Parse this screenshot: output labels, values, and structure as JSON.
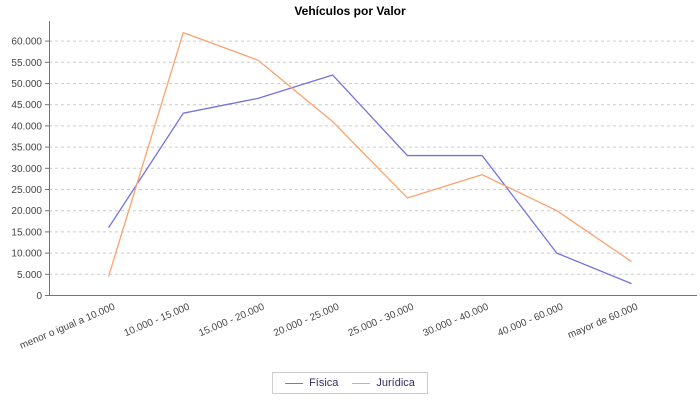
{
  "chart": {
    "title": "Vehículos por Valor"
  },
  "chart_data": {
    "type": "line",
    "title": "Vehículos por Valor",
    "categories": [
      "menor o igual a 10.000",
      "10.000 - 15.000",
      "15.000 - 20.000",
      "20.000 - 25.000",
      "25.000 - 30.000",
      "30.000 - 40.000",
      "40.000 - 60.000",
      "mayor de 60.000"
    ],
    "series": [
      {
        "name": "Física",
        "color": "#7373DE",
        "values": [
          16000,
          43000,
          46500,
          52000,
          33000,
          33000,
          10000,
          2800
        ]
      },
      {
        "name": "Jurídica",
        "color": "#FCA26E",
        "values": [
          4500,
          62000,
          55500,
          41000,
          23000,
          28500,
          20000,
          8000
        ]
      }
    ],
    "xlabel": "",
    "ylabel": "",
    "ylim": [
      0,
      65000
    ],
    "ytick_step": 5000,
    "ytick_labels": [
      "0",
      "5.000",
      "10.000",
      "15.000",
      "20.000",
      "25.000",
      "30.000",
      "35.000",
      "40.000",
      "45.000",
      "50.000",
      "55.000",
      "60.000"
    ],
    "grid": "horizontal dashed",
    "legend_position": "bottom",
    "colors": {
      "axis_line": "#737373",
      "grid_line": "#CCCCCC",
      "tick_label": "#444444",
      "title": "#000000",
      "legend_text": "#3A2A68",
      "legend_border": "#CCCCCC",
      "background": "#FFFFFF"
    }
  }
}
